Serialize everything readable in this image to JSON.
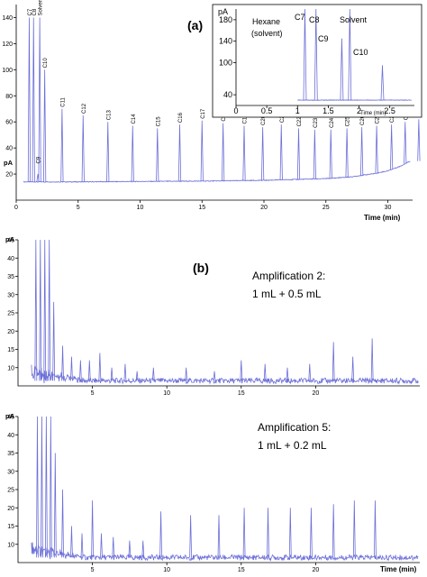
{
  "chart_data": [
    {
      "id": "a",
      "type": "line",
      "panel_label": "(a)",
      "ylabel": "pA",
      "xlabel": "Time (min)",
      "xlim": [
        0,
        32
      ],
      "ylim": [
        0,
        150
      ],
      "xticks": [
        0,
        5,
        10,
        15,
        20,
        25,
        30
      ],
      "yticks": [
        20,
        40,
        60,
        80,
        100,
        120,
        140
      ],
      "baseline": [
        [
          0,
          14
        ],
        [
          5,
          14
        ],
        [
          10,
          14.3
        ],
        [
          15,
          14.6
        ],
        [
          20,
          15.2
        ],
        [
          25,
          16.5
        ],
        [
          27,
          17.8
        ],
        [
          29,
          20.5
        ],
        [
          30,
          22.5
        ],
        [
          31,
          26
        ],
        [
          31.8,
          30
        ]
      ],
      "peaks": [
        {
          "label": "C7",
          "x": 1.05,
          "y": 140
        },
        {
          "label": "C8",
          "x": 1.4,
          "y": 140
        },
        {
          "label": "Solvent",
          "x": 1.9,
          "y": 140
        },
        {
          "label": "C9",
          "x": 1.75,
          "y": 20
        },
        {
          "label": "C10",
          "x": 2.3,
          "y": 100
        },
        {
          "label": "C11",
          "x": 3.7,
          "y": 70
        },
        {
          "label": "C12",
          "x": 5.4,
          "y": 65
        },
        {
          "label": "C13",
          "x": 7.4,
          "y": 60
        },
        {
          "label": "C14",
          "x": 9.4,
          "y": 57
        },
        {
          "label": "C15",
          "x": 11.4,
          "y": 55
        },
        {
          "label": "C16",
          "x": 13.2,
          "y": 58
        },
        {
          "label": "C17",
          "x": 15.0,
          "y": 61
        },
        {
          "label": "C18",
          "x": 16.7,
          "y": 59
        },
        {
          "label": "C19",
          "x": 18.4,
          "y": 57
        },
        {
          "label": "C20",
          "x": 19.9,
          "y": 56
        },
        {
          "label": "C21",
          "x": 21.4,
          "y": 58
        },
        {
          "label": "C22",
          "x": 22.8,
          "y": 55
        },
        {
          "label": "C23",
          "x": 24.1,
          "y": 54
        },
        {
          "label": "C24",
          "x": 25.4,
          "y": 54
        },
        {
          "label": "C25",
          "x": 26.7,
          "y": 55
        },
        {
          "label": "C26",
          "x": 27.9,
          "y": 56
        },
        {
          "label": "C27",
          "x": 29.1,
          "y": 57
        },
        {
          "label": "C28",
          "x": 30.3,
          "y": 58
        },
        {
          "label": "C29",
          "x": 31.4,
          "y": 60
        },
        {
          "label": "C30",
          "x": 32.5,
          "y": 62
        }
      ],
      "inset": {
        "ylabel": "pA",
        "xlabel": "Time (min)",
        "xlim": [
          0,
          2.9
        ],
        "ylim": [
          20,
          200
        ],
        "xticks": [
          "0",
          "0.5",
          "1",
          "1.5",
          "2",
          "2.5"
        ],
        "yticks": [
          40,
          100,
          140,
          180
        ],
        "labels": [
          "Hexane (solvent)",
          "C7",
          "C8",
          "C9",
          "Solvent",
          "C10"
        ],
        "hexane_label_line1": "Hexane",
        "hexane_label_line2": "(solvent)",
        "peaks": [
          {
            "label": "C7",
            "x": 1.12,
            "y": 200
          },
          {
            "label": "C8",
            "x": 1.3,
            "y": 200
          },
          {
            "label": "C9",
            "x": 1.72,
            "y": 145
          },
          {
            "label": "Solvent",
            "x": 1.85,
            "y": 200
          },
          {
            "label": "C10",
            "x": 2.38,
            "y": 95
          }
        ]
      }
    },
    {
      "id": "b1",
      "type": "line",
      "panel_label": "(b)",
      "ylabel": "pA",
      "xlim": [
        0,
        27
      ],
      "ylim": [
        5,
        45
      ],
      "xticks": [
        5,
        10,
        15,
        20
      ],
      "yticks": [
        10,
        15,
        20,
        25,
        30,
        35,
        40,
        45
      ],
      "annotation_line1": "Amplification 2:",
      "annotation_line2": "1 mL + 0.5 mL",
      "peaks_x": [
        1.2,
        1.5,
        1.8,
        2.1,
        2.4,
        3.0,
        3.6,
        4.2,
        4.8,
        5.5,
        6.3,
        7.2,
        8.0,
        9.1,
        11.3,
        13.2,
        15.0,
        16.6,
        18.1,
        19.6,
        21.2,
        22.5,
        23.8
      ],
      "peaks_y": [
        45,
        45,
        45,
        45,
        28,
        16,
        13,
        12,
        12,
        14,
        10,
        11,
        9,
        10,
        10,
        9,
        12,
        11,
        10,
        11,
        17,
        13,
        18
      ]
    },
    {
      "id": "b2",
      "type": "line",
      "ylabel": "pA",
      "xlabel": "Time (min)",
      "xlim": [
        0,
        27
      ],
      "ylim": [
        5,
        45
      ],
      "xticks": [
        5,
        10,
        15,
        20
      ],
      "yticks": [
        10,
        15,
        20,
        25,
        30,
        35,
        40,
        45
      ],
      "annotation_line1": "Amplification 5:",
      "annotation_line2": "1 mL + 0.2 mL",
      "peaks_x": [
        1.3,
        1.6,
        1.9,
        2.2,
        2.5,
        3.0,
        3.6,
        4.3,
        5.0,
        5.6,
        6.4,
        7.5,
        8.4,
        9.6,
        11.6,
        13.5,
        15.2,
        16.8,
        18.3,
        19.7,
        21.2,
        22.6,
        24.0
      ],
      "peaks_y": [
        45,
        45,
        45,
        45,
        35,
        25,
        15,
        13,
        22,
        13,
        12,
        11,
        11,
        19,
        18,
        18,
        20,
        20,
        20,
        20,
        21,
        22,
        22
      ]
    }
  ]
}
